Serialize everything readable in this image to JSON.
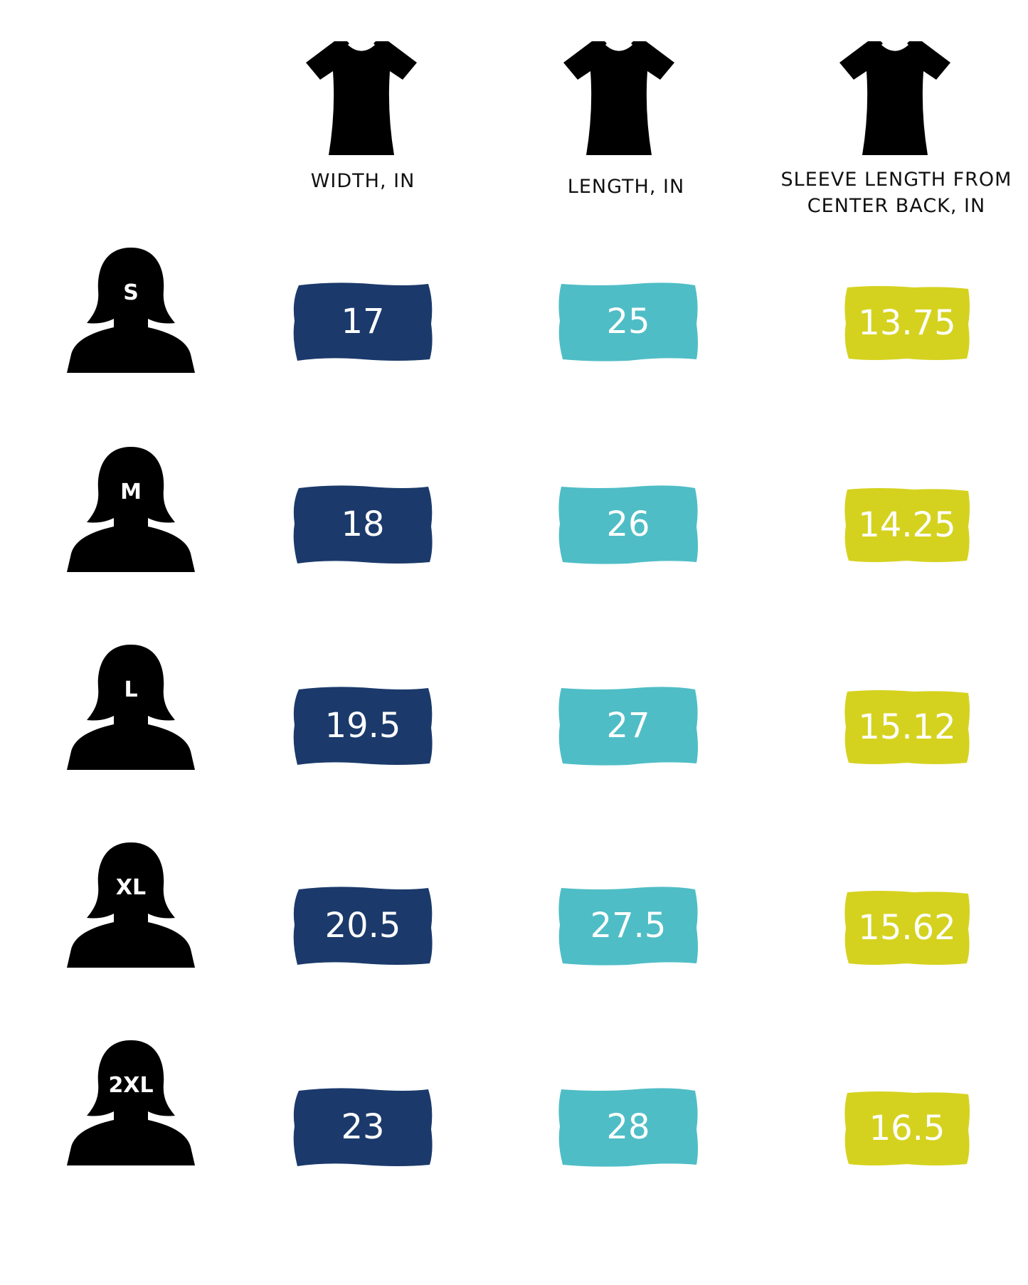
{
  "columns": [
    {
      "label": "WIDTH, IN",
      "icon": "tshirt-icon"
    },
    {
      "label": "LENGTH, IN",
      "icon": "tshirt-icon"
    },
    {
      "label": "SLEEVE LENGTH FROM CENTER BACK, IN",
      "icon": "tshirt-icon"
    }
  ],
  "rows": [
    {
      "size": "S",
      "width": "17",
      "length": "25",
      "sleeve": "13.75"
    },
    {
      "size": "M",
      "width": "18",
      "length": "26",
      "sleeve": "14.25"
    },
    {
      "size": "L",
      "width": "19.5",
      "length": "27",
      "sleeve": "15.12"
    },
    {
      "size": "XL",
      "width": "20.5",
      "length": "27.5",
      "sleeve": "15.62"
    },
    {
      "size": "2XL",
      "width": "23",
      "length": "28",
      "sleeve": "16.5"
    }
  ],
  "colors": {
    "width": "#1b3a6b",
    "length": "#4fbdc6",
    "sleeve": "#d5d21f",
    "icon": "#000000"
  },
  "row_icon": "woman-silhouette-icon"
}
